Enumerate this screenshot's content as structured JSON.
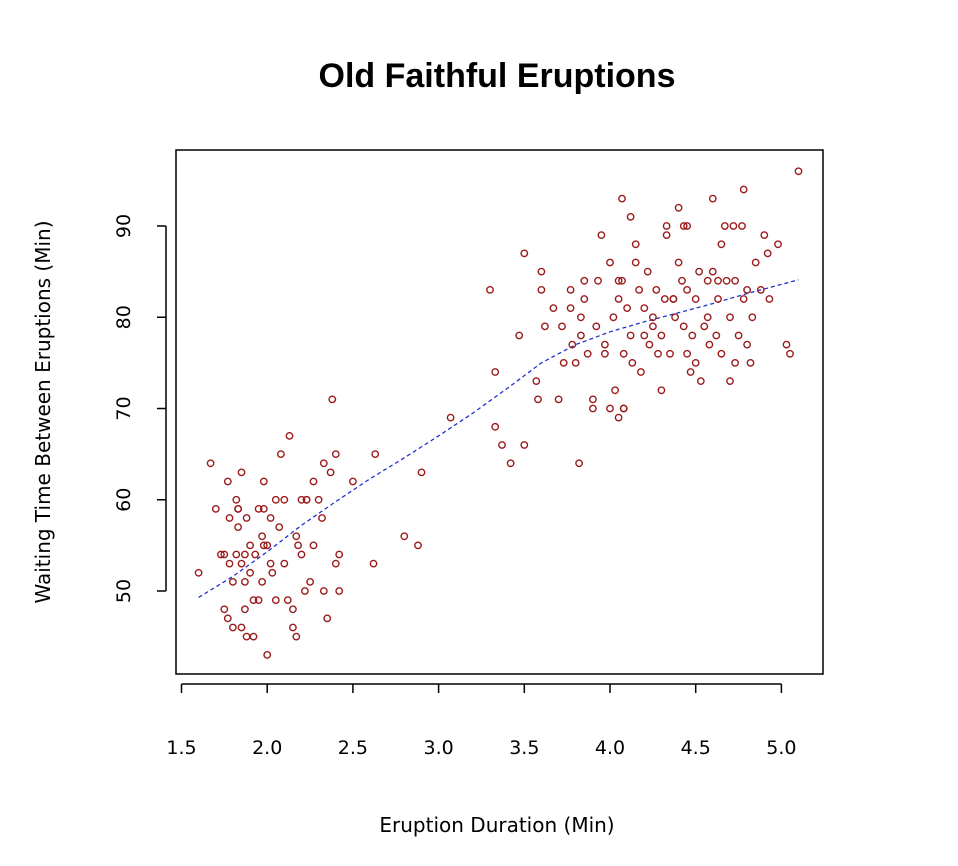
{
  "chart_data": {
    "type": "scatter",
    "title": "Old Faithful Eruptions",
    "xlabel": "Eruption Duration (Min)",
    "ylabel": "Waiting Time Between Eruptions (Min)",
    "xlim": [
      1.5,
      5.2
    ],
    "ylim": [
      41,
      97
    ],
    "x_ticks": [
      1.5,
      2.0,
      2.5,
      3.0,
      3.5,
      4.0,
      4.5,
      5.0
    ],
    "x_tick_labels": [
      "1.5",
      "2.0",
      "2.5",
      "3.0",
      "3.5",
      "4.0",
      "4.5",
      "5.0"
    ],
    "y_ticks": [
      50,
      60,
      70,
      80,
      90
    ],
    "y_tick_labels": [
      "50",
      "60",
      "70",
      "80",
      "90"
    ],
    "grid": false,
    "legend": "none",
    "colors": {
      "points": "#9b1b1b",
      "trend": "#2233cc"
    },
    "series": [
      {
        "type": "scatter",
        "points": [
          [
            1.6,
            52
          ],
          [
            1.67,
            64
          ],
          [
            1.7,
            59
          ],
          [
            1.73,
            54
          ],
          [
            1.75,
            54
          ],
          [
            1.75,
            48
          ],
          [
            1.77,
            47
          ],
          [
            1.77,
            62
          ],
          [
            1.78,
            53
          ],
          [
            1.78,
            58
          ],
          [
            1.8,
            46
          ],
          [
            1.8,
            51
          ],
          [
            1.82,
            54
          ],
          [
            1.82,
            60
          ],
          [
            1.83,
            59
          ],
          [
            1.83,
            57
          ],
          [
            1.85,
            63
          ],
          [
            1.85,
            53
          ],
          [
            1.85,
            46
          ],
          [
            1.87,
            54
          ],
          [
            1.87,
            51
          ],
          [
            1.87,
            48
          ],
          [
            1.88,
            45
          ],
          [
            1.88,
            58
          ],
          [
            1.9,
            55
          ],
          [
            1.9,
            52
          ],
          [
            1.92,
            49
          ],
          [
            1.92,
            45
          ],
          [
            1.93,
            54
          ],
          [
            1.95,
            49
          ],
          [
            1.97,
            51
          ],
          [
            1.97,
            56
          ],
          [
            1.98,
            55
          ],
          [
            1.98,
            59
          ],
          [
            1.98,
            62
          ],
          [
            2.0,
            43
          ],
          [
            2.0,
            55
          ],
          [
            2.02,
            58
          ],
          [
            2.02,
            53
          ],
          [
            2.03,
            52
          ],
          [
            2.05,
            49
          ],
          [
            2.05,
            60
          ],
          [
            2.07,
            57
          ],
          [
            2.08,
            65
          ],
          [
            2.1,
            53
          ],
          [
            2.1,
            60
          ],
          [
            2.12,
            49
          ],
          [
            2.13,
            67
          ],
          [
            2.15,
            46
          ],
          [
            2.15,
            48
          ],
          [
            2.17,
            45
          ],
          [
            2.17,
            56
          ],
          [
            2.18,
            55
          ],
          [
            2.2,
            54
          ],
          [
            2.2,
            60
          ],
          [
            2.22,
            50
          ],
          [
            2.23,
            60
          ],
          [
            2.25,
            51
          ],
          [
            2.27,
            55
          ],
          [
            2.27,
            62
          ],
          [
            2.3,
            60
          ],
          [
            2.32,
            58
          ],
          [
            2.33,
            64
          ],
          [
            2.33,
            50
          ],
          [
            2.35,
            47
          ],
          [
            2.37,
            63
          ],
          [
            2.38,
            71
          ],
          [
            2.4,
            65
          ],
          [
            2.4,
            53
          ],
          [
            2.42,
            54
          ],
          [
            2.42,
            50
          ],
          [
            2.5,
            62
          ],
          [
            2.62,
            53
          ],
          [
            2.63,
            65
          ],
          [
            2.8,
            56
          ],
          [
            2.88,
            55
          ],
          [
            2.9,
            63
          ],
          [
            3.07,
            69
          ],
          [
            3.3,
            83
          ],
          [
            3.33,
            74
          ],
          [
            3.33,
            68
          ],
          [
            3.37,
            66
          ],
          [
            3.42,
            64
          ],
          [
            3.47,
            78
          ],
          [
            3.5,
            87
          ],
          [
            3.5,
            66
          ],
          [
            3.57,
            73
          ],
          [
            3.58,
            71
          ],
          [
            3.6,
            85
          ],
          [
            3.6,
            83
          ],
          [
            3.62,
            79
          ],
          [
            3.67,
            81
          ],
          [
            3.7,
            71
          ],
          [
            3.72,
            79
          ],
          [
            3.73,
            75
          ],
          [
            3.77,
            81
          ],
          [
            3.77,
            83
          ],
          [
            3.78,
            77
          ],
          [
            3.8,
            75
          ],
          [
            3.82,
            64
          ],
          [
            3.83,
            78
          ],
          [
            3.83,
            80
          ],
          [
            3.85,
            82
          ],
          [
            3.85,
            84
          ],
          [
            3.87,
            76
          ],
          [
            3.9,
            70
          ],
          [
            3.9,
            71
          ],
          [
            3.92,
            79
          ],
          [
            3.93,
            84
          ],
          [
            3.95,
            89
          ],
          [
            3.97,
            77
          ],
          [
            3.97,
            76
          ],
          [
            4.0,
            86
          ],
          [
            4.0,
            70
          ],
          [
            4.02,
            80
          ],
          [
            4.03,
            72
          ],
          [
            4.05,
            82
          ],
          [
            4.05,
            69
          ],
          [
            4.07,
            93
          ],
          [
            4.07,
            84
          ],
          [
            4.08,
            76
          ],
          [
            4.08,
            70
          ],
          [
            4.1,
            81
          ],
          [
            4.12,
            91
          ],
          [
            4.12,
            78
          ],
          [
            4.13,
            75
          ],
          [
            4.15,
            88
          ],
          [
            4.15,
            86
          ],
          [
            4.17,
            83
          ],
          [
            4.18,
            74
          ],
          [
            4.2,
            81
          ],
          [
            4.2,
            78
          ],
          [
            4.22,
            85
          ],
          [
            4.23,
            77
          ],
          [
            4.25,
            80
          ],
          [
            4.25,
            79
          ],
          [
            4.27,
            83
          ],
          [
            4.28,
            76
          ],
          [
            4.3,
            72
          ],
          [
            4.3,
            78
          ],
          [
            4.32,
            82
          ],
          [
            4.33,
            89
          ],
          [
            4.33,
            90
          ],
          [
            4.35,
            76
          ],
          [
            4.37,
            82
          ],
          [
            4.38,
            80
          ],
          [
            4.4,
            92
          ],
          [
            4.4,
            86
          ],
          [
            4.42,
            84
          ],
          [
            4.43,
            90
          ],
          [
            4.43,
            79
          ],
          [
            4.45,
            76
          ],
          [
            4.45,
            83
          ],
          [
            4.47,
            74
          ],
          [
            4.48,
            78
          ],
          [
            4.5,
            82
          ],
          [
            4.5,
            75
          ],
          [
            4.52,
            85
          ],
          [
            4.53,
            73
          ],
          [
            4.55,
            79
          ],
          [
            4.57,
            84
          ],
          [
            4.57,
            80
          ],
          [
            4.58,
            77
          ],
          [
            4.6,
            93
          ],
          [
            4.6,
            85
          ],
          [
            4.62,
            78
          ],
          [
            4.63,
            82
          ],
          [
            4.65,
            76
          ],
          [
            4.65,
            88
          ],
          [
            4.67,
            90
          ],
          [
            4.68,
            84
          ],
          [
            4.7,
            73
          ],
          [
            4.7,
            80
          ],
          [
            4.72,
            90
          ],
          [
            4.73,
            75
          ],
          [
            4.73,
            84
          ],
          [
            4.75,
            78
          ],
          [
            4.77,
            90
          ],
          [
            4.78,
            94
          ],
          [
            4.78,
            82
          ],
          [
            4.8,
            77
          ],
          [
            4.8,
            83
          ],
          [
            4.82,
            75
          ],
          [
            4.83,
            80
          ],
          [
            4.85,
            86
          ],
          [
            4.88,
            83
          ],
          [
            4.9,
            89
          ],
          [
            4.92,
            87
          ],
          [
            4.93,
            82
          ],
          [
            4.98,
            88
          ],
          [
            5.03,
            77
          ],
          [
            5.05,
            76
          ],
          [
            5.1,
            96
          ],
          [
            1.83,
            59
          ],
          [
            1.95,
            59
          ],
          [
            2.23,
            60
          ],
          [
            4.05,
            84
          ],
          [
            4.37,
            82
          ],
          [
            4.45,
            90
          ],
          [
            4.63,
            84
          ],
          [
            4.08,
            70
          ]
        ]
      },
      {
        "type": "line",
        "style": "dashed",
        "points": [
          [
            1.6,
            49.3
          ],
          [
            1.8,
            51.6
          ],
          [
            2.0,
            54.3
          ],
          [
            2.2,
            57.2
          ],
          [
            2.4,
            59.8
          ],
          [
            2.6,
            62.3
          ],
          [
            2.8,
            64.6
          ],
          [
            3.0,
            67.0
          ],
          [
            3.2,
            69.5
          ],
          [
            3.4,
            72.2
          ],
          [
            3.6,
            75.0
          ],
          [
            3.8,
            77.0
          ],
          [
            4.0,
            78.4
          ],
          [
            4.2,
            79.5
          ],
          [
            4.4,
            80.5
          ],
          [
            4.6,
            81.5
          ],
          [
            4.8,
            82.6
          ],
          [
            5.0,
            83.6
          ],
          [
            5.1,
            84.1
          ]
        ]
      }
    ]
  }
}
